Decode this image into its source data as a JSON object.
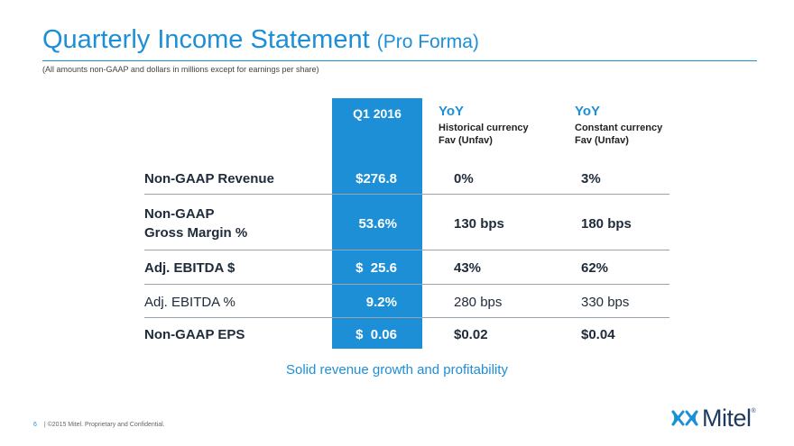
{
  "slide": {
    "title": "Quarterly Income Statement",
    "title_suffix": "(Pro Forma)",
    "note": "(All amounts non-GAAP and dollars in millions except for earnings per share)",
    "tagline": "Solid revenue growth and profitability",
    "page_number": "6",
    "copyright": "|  ©2015 Mitel. Proprietary and Confidential.",
    "logo_text": "Mitel",
    "logo_mark": "®",
    "accent_color": "#1d8fd6"
  },
  "table": {
    "columns": {
      "q": "Q1 2016",
      "yoy_hist": {
        "title": "YoY",
        "line1": "Historical currency",
        "line2": "Fav (Unfav)"
      },
      "yoy_const": {
        "title": "YoY",
        "line1": "Constant currency",
        "line2": "Fav (Unfav)"
      }
    },
    "rows": [
      {
        "label": "Non-GAAP Revenue",
        "q": "$276.8",
        "yoy_hist": "0%",
        "yoy_const": "3%"
      },
      {
        "label_line1": "Non-GAAP",
        "label_line2": "Gross Margin %",
        "q": "53.6%",
        "yoy_hist": "130 bps",
        "yoy_const": "180 bps"
      },
      {
        "label": "Adj. EBITDA $",
        "q": "$  25.6",
        "yoy_hist": "43%",
        "yoy_const": "62%"
      },
      {
        "label": "Adj. EBITDA %",
        "q": "9.2%",
        "yoy_hist": "280 bps",
        "yoy_const": "330 bps"
      },
      {
        "label": "Non-GAAP EPS",
        "q": "$  0.06",
        "yoy_hist": "$0.02",
        "yoy_const": "$0.04"
      }
    ]
  }
}
